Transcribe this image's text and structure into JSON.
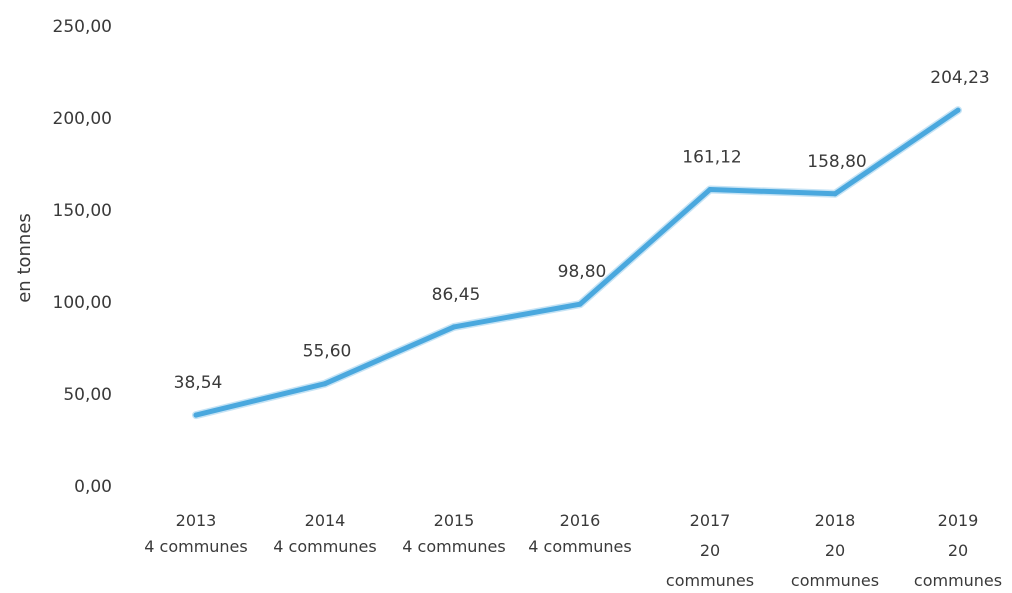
{
  "chart_data": {
    "type": "line",
    "title": "",
    "xlabel": "",
    "ylabel": "en tonnes",
    "categories": [
      [
        "2013",
        "4 communes"
      ],
      [
        "2014",
        "4 communes"
      ],
      [
        "2015",
        "4 communes"
      ],
      [
        "2016",
        "4 communes"
      ],
      [
        "2017",
        "20",
        "communes"
      ],
      [
        "2018",
        "20",
        "communes"
      ],
      [
        "2019",
        "20",
        "communes"
      ]
    ],
    "series": [
      {
        "values": [
          38.54,
          55.6,
          86.45,
          98.8,
          161.12,
          158.8,
          204.23
        ],
        "data_labels": [
          "38,54",
          "55,60",
          "86,45",
          "98,80",
          "161,12",
          "158,80",
          "204,23"
        ],
        "color": "#4aa8de"
      }
    ],
    "ylim": [
      0,
      250
    ],
    "yticks": [
      0,
      50,
      100,
      150,
      200,
      250
    ],
    "ytick_labels": [
      "0,00",
      "50,00",
      "100,00",
      "150,00",
      "200,00",
      "250,00"
    ],
    "grid": false,
    "legend": "none"
  }
}
